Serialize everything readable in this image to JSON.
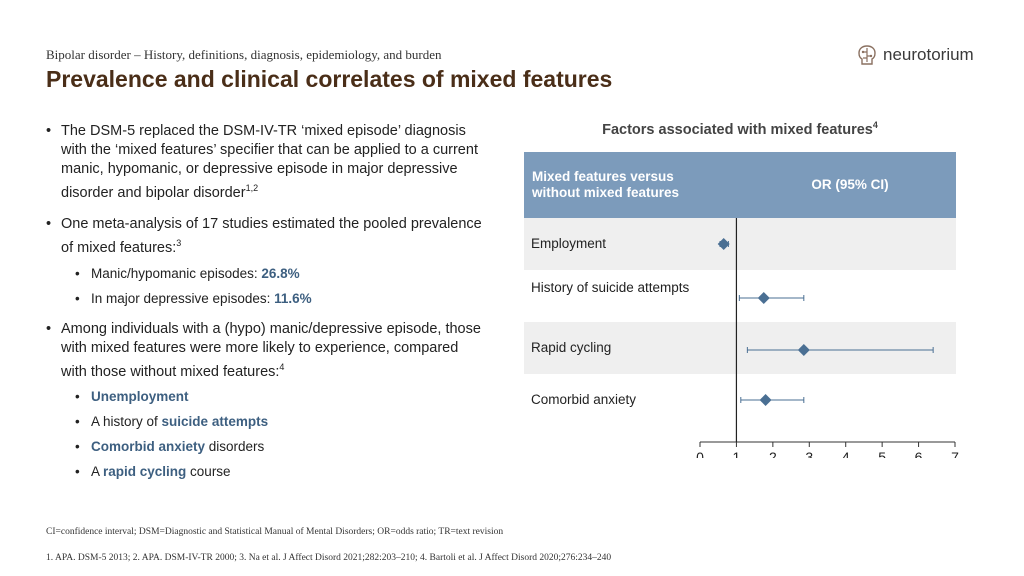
{
  "breadcrumb": "Bipolar disorder – History, definitions, diagnosis, epidemiology, and burden",
  "title": "Prevalence and clinical correlates of mixed features",
  "logo": {
    "text": "neurotorium",
    "icon": "brain-circuit-icon"
  },
  "bullets": {
    "b1": "The DSM-5 replaced the DSM-IV-TR ‘mixed episode’ diagnosis with the ‘mixed features’ specifier that can be applied to a current manic, hypomanic, or depressive episode in major depressive disorder and bipolar disorder",
    "b1_sup": "1,2",
    "b2": "One meta-analysis of 17 studies estimated the pooled prevalence of mixed features:",
    "b2_sup": "3",
    "b2_sub1_text": "Manic/hypomanic episodes: ",
    "b2_sub1_value": "26.8%",
    "b2_sub2_text": "In major depressive episodes: ",
    "b2_sub2_value": "11.6%",
    "b3": "Among individuals with a (hypo) manic/depressive episode, those with mixed features were more likely to experience, compared with those without mixed features:",
    "b3_sup": "4",
    "b3_sub1": "Unemployment",
    "b3_sub2_pre": "A history of ",
    "b3_sub2_hl": "suicide attempts",
    "b3_sub3_hl": "Comorbid anxiety",
    "b3_sub3_post": " disorders",
    "b3_sub4_pre": "A ",
    "b3_sub4_hl": "rapid cycling",
    "b3_sub4_post": " course"
  },
  "chart": {
    "title": "Factors associated with mixed features",
    "title_sup": "4",
    "header_col1": "Mixed features versus without mixed features",
    "header_col2": "OR (95% CI)"
  },
  "colors": {
    "accent": "#7c9bbb",
    "marker": "#4a6f93",
    "title": "#4a2e18",
    "highlight": "#3d5f80"
  },
  "chart_data": {
    "type": "forest",
    "reference_line": 1,
    "xlim": [
      0,
      7
    ],
    "xticks": [
      "0",
      "1",
      "2",
      "3",
      "4",
      "5",
      "6",
      "7"
    ],
    "rows": [
      {
        "label": "Employment",
        "or": 0.65,
        "lo": 0.55,
        "hi": 0.78
      },
      {
        "label": "History of suicide attempts",
        "or": 1.75,
        "lo": 1.08,
        "hi": 2.85
      },
      {
        "label": "Rapid cycling",
        "or": 2.85,
        "lo": 1.3,
        "hi": 6.4
      },
      {
        "label": "Comorbid anxiety",
        "or": 1.8,
        "lo": 1.12,
        "hi": 2.85
      }
    ]
  },
  "footnotes": {
    "abbrev": "CI=confidence interval; DSM=Diagnostic and Statistical Manual of Mental Disorders; OR=odds ratio; TR=text revision",
    "refs": "1. APA. DSM-5 2013; 2. APA. DSM-IV-TR 2000; 3. Na et al. J Affect Disord 2021;282:203–210; 4. Bartoli et al. J Affect Disord 2020;276:234–240"
  }
}
